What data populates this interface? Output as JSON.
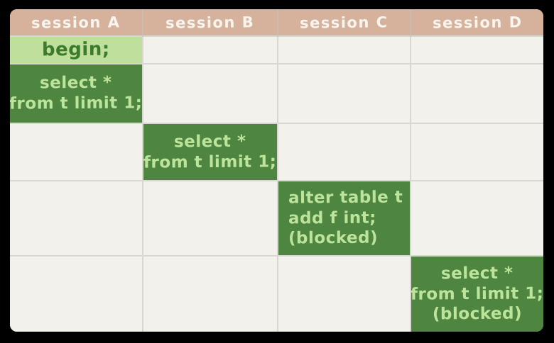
{
  "colors": {
    "frame_bg": "#000000",
    "header_bg": "#d6b29c",
    "header_text": "#f8f4ee",
    "cell_bg": "#f2f1ec",
    "grid_line": "#d8d7d2",
    "dark_box_bg": "#4e8541",
    "dark_box_text": "#bce59b",
    "light_box_bg": "#bfe09c",
    "light_box_text": "#3c7b2b"
  },
  "diagram": {
    "headers": [
      {
        "id": "session-a",
        "label": "session A"
      },
      {
        "id": "session-b",
        "label": "session B"
      },
      {
        "id": "session-c",
        "label": "session C"
      },
      {
        "id": "session-d",
        "label": "session D"
      }
    ],
    "rows": [
      {
        "cells": [
          {
            "col": 0,
            "variant": "light",
            "align": "center",
            "lines": [
              "begin;"
            ]
          }
        ]
      },
      {
        "cells": [
          {
            "col": 0,
            "variant": "dark",
            "align": "center",
            "lines": [
              "select *",
              "from t limit 1;"
            ]
          }
        ]
      },
      {
        "cells": [
          {
            "col": 1,
            "variant": "dark",
            "align": "center",
            "lines": [
              "select *",
              "from t limit 1;"
            ]
          }
        ]
      },
      {
        "cells": [
          {
            "col": 2,
            "variant": "dark",
            "align": "left",
            "lines": [
              "alter table t",
              "add f int;",
              "(blocked)"
            ]
          }
        ]
      },
      {
        "cells": [
          {
            "col": 3,
            "variant": "dark",
            "align": "center",
            "lines": [
              "select *",
              "from t limit 1;",
              "(blocked)"
            ]
          }
        ]
      }
    ]
  }
}
